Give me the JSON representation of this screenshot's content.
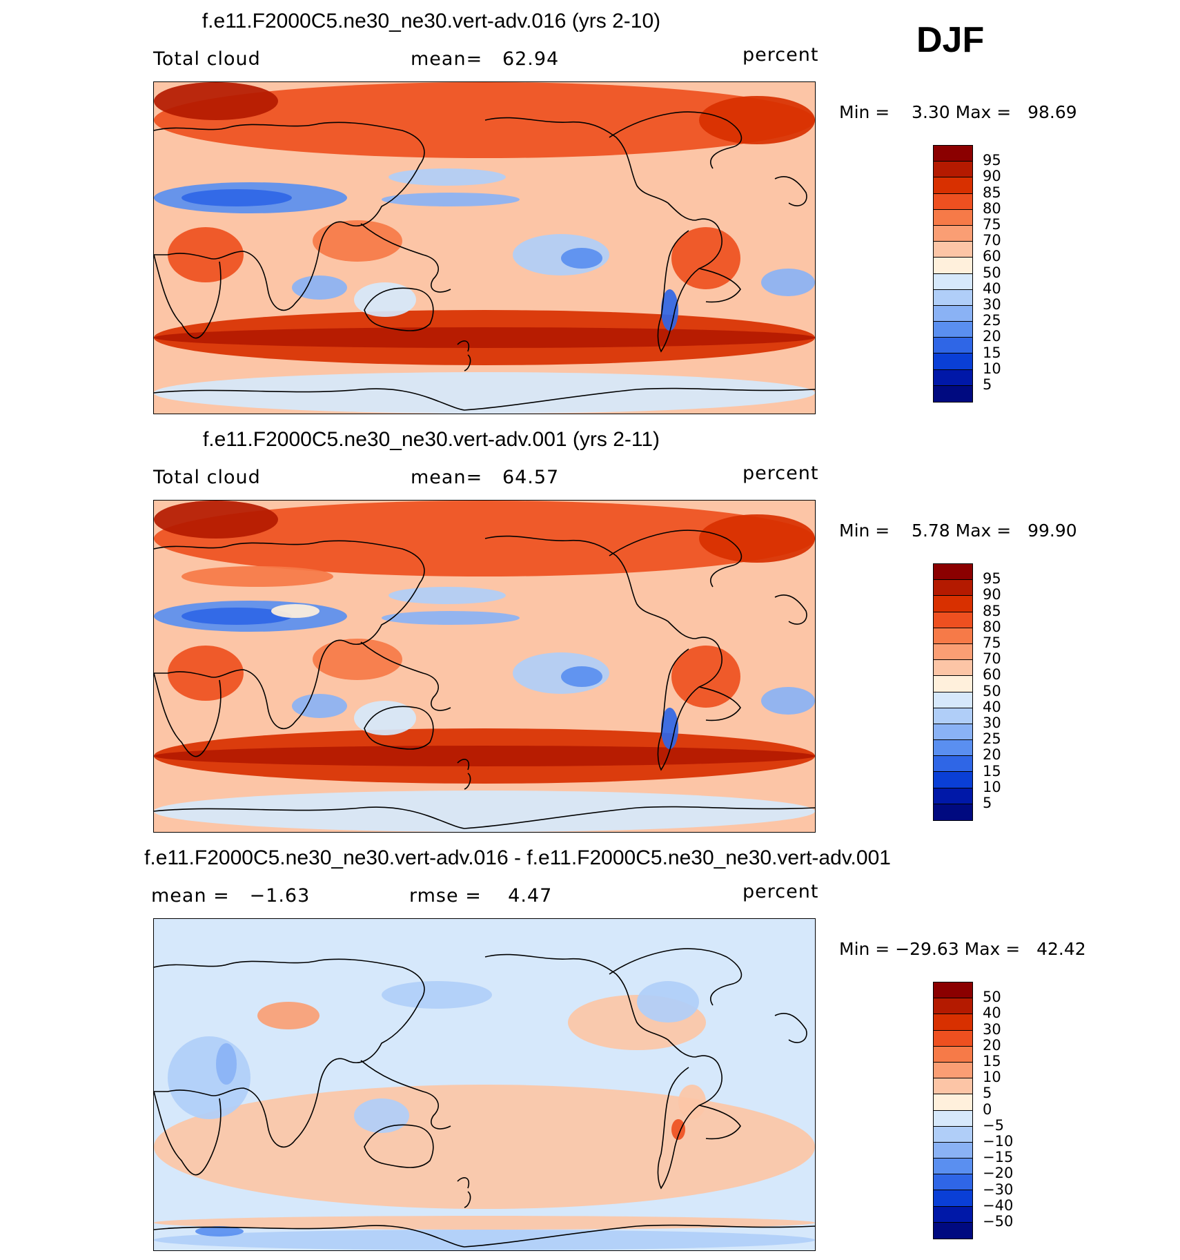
{
  "season": "DJF",
  "panels": [
    {
      "title": "f.e11.F2000C5.ne30_ne30.vert-adv.016 (yrs 2-10)",
      "left_label": "Total cloud",
      "center_label": "mean=   62.94",
      "units": "percent",
      "minmax": "Min =    3.30 Max =   98.69",
      "colorbar": {
        "labels": [
          "95",
          "90",
          "85",
          "80",
          "75",
          "70",
          "60",
          "50",
          "40",
          "30",
          "25",
          "20",
          "15",
          "10",
          "5"
        ],
        "colors": [
          "#8b0000",
          "#b41a00",
          "#d83000",
          "#ee5020",
          "#f67a48",
          "#fa9e74",
          "#fcc5a6",
          "#fff0dc",
          "#d6e8fb",
          "#b0cef8",
          "#8ab2f5",
          "#5a8ff0",
          "#2f66e6",
          "#0a3fd6",
          "#0018a8",
          "#000a80"
        ]
      },
      "map_description_palette": "full-field"
    },
    {
      "title": "f.e11.F2000C5.ne30_ne30.vert-adv.001 (yrs 2-11)",
      "left_label": "Total cloud",
      "center_label": "mean=   64.57",
      "units": "percent",
      "minmax": "Min =    5.78 Max =   99.90",
      "colorbar": {
        "labels": [
          "95",
          "90",
          "85",
          "80",
          "75",
          "70",
          "60",
          "50",
          "40",
          "30",
          "25",
          "20",
          "15",
          "10",
          "5"
        ],
        "colors": [
          "#8b0000",
          "#b41a00",
          "#d83000",
          "#ee5020",
          "#f67a48",
          "#fa9e74",
          "#fcc5a6",
          "#fff0dc",
          "#d6e8fb",
          "#b0cef8",
          "#8ab2f5",
          "#5a8ff0",
          "#2f66e6",
          "#0a3fd6",
          "#0018a8",
          "#000a80"
        ]
      },
      "map_description_palette": "full-field"
    },
    {
      "title": "f.e11.F2000C5.ne30_ne30.vert-adv.016 - f.e11.F2000C5.ne30_ne30.vert-adv.001",
      "left_label": "mean =   −1.63",
      "center_label": "rmse =    4.47",
      "units": "percent",
      "minmax": "Min = −29.63 Max =   42.42",
      "colorbar": {
        "labels": [
          "50",
          "40",
          "30",
          "20",
          "15",
          "10",
          "5",
          "0",
          "−5",
          "−10",
          "−15",
          "−20",
          "−30",
          "−40",
          "−50"
        ],
        "colors": [
          "#8b0000",
          "#b41a00",
          "#d83000",
          "#ee5020",
          "#f67a48",
          "#fa9e74",
          "#fcc5a6",
          "#fff0dc",
          "#d6e8fb",
          "#b0cef8",
          "#8ab2f5",
          "#5a8ff0",
          "#2f66e6",
          "#0a3fd6",
          "#0018a8",
          "#000a80"
        ]
      },
      "map_description_palette": "difference"
    }
  ]
}
